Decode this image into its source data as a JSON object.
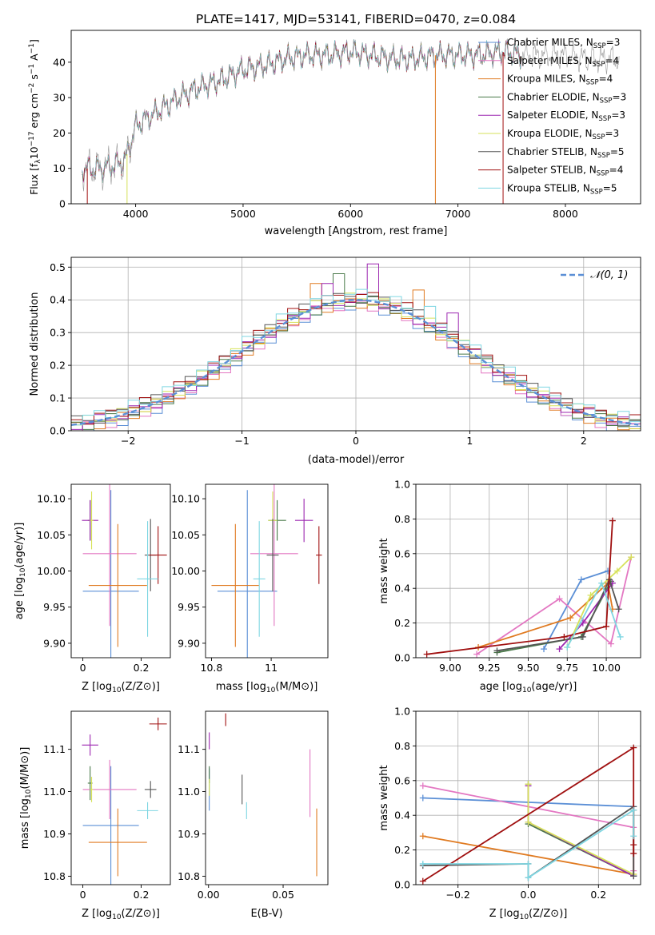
{
  "figure": {
    "title": "PLATE=1417, MJD=53141, FIBERID=0470, z=0.084"
  },
  "colors": {
    "chabrier_miles": "#5b8fd6",
    "salpeter_miles": "#e377c2",
    "kroupa_miles": "#e07b22",
    "chabrier_elodie": "#4a7a4a",
    "salpeter_elodie": "#9c27b0",
    "kroupa_elodie": "#d6e25a",
    "chabrier_stelib": "#555555",
    "salpeter_stelib": "#a01010",
    "kroupa_stelib": "#7fd6e2"
  },
  "chart_data": [
    {
      "id": "spectrum",
      "type": "line",
      "xlabel": "wavelength [Angstrom, rest frame]",
      "ylabel": "Flux [f_λ 10^-17 erg cm^-2 s^-1 A^-1]",
      "xlim": [
        3400,
        8700
      ],
      "ylim": [
        0,
        49
      ],
      "xticks": [
        4000,
        5000,
        6000,
        7000,
        8000
      ],
      "yticks": [
        0,
        10,
        20,
        30,
        40
      ],
      "legend_loc": "upper right",
      "legend": [
        {
          "base": "Chabrier MILES, N",
          "sub": "SSP",
          "tail": "=3",
          "color_key": "chabrier_miles"
        },
        {
          "base": "Salpeter MILES, N",
          "sub": "SSP",
          "tail": "=4",
          "color_key": "salpeter_miles"
        },
        {
          "base": "Kroupa MILES, N",
          "sub": "SSP",
          "tail": "=4",
          "color_key": "kroupa_miles"
        },
        {
          "base": "Chabrier ELODIE, N",
          "sub": "SSP",
          "tail": "=3",
          "color_key": "chabrier_elodie"
        },
        {
          "base": "Salpeter ELODIE, N",
          "sub": "SSP",
          "tail": "=3",
          "color_key": "salpeter_elodie"
        },
        {
          "base": "Kroupa ELODIE, N",
          "sub": "SSP",
          "tail": "=3",
          "color_key": "kroupa_elodie"
        },
        {
          "base": "Chabrier STELIB, N",
          "sub": "SSP",
          "tail": "=5",
          "color_key": "chabrier_stelib"
        },
        {
          "base": "Salpeter STELIB, N",
          "sub": "SSP",
          "tail": "=4",
          "color_key": "salpeter_stelib"
        },
        {
          "base": "Kroupa STELIB, N",
          "sub": "SSP",
          "tail": "=5",
          "color_key": "kroupa_stelib"
        }
      ],
      "continuum": [
        [
          3500,
          10
        ],
        [
          3700,
          10
        ],
        [
          3900,
          12
        ],
        [
          4000,
          22
        ],
        [
          4200,
          26
        ],
        [
          4400,
          30
        ],
        [
          4600,
          33
        ],
        [
          4800,
          35
        ],
        [
          5000,
          38
        ],
        [
          5200,
          39
        ],
        [
          5400,
          41
        ],
        [
          5600,
          42
        ],
        [
          5800,
          42
        ],
        [
          6000,
          43
        ],
        [
          6200,
          42
        ],
        [
          6400,
          41
        ],
        [
          6600,
          41
        ],
        [
          6800,
          42
        ],
        [
          7000,
          42
        ],
        [
          7200,
          42
        ],
        [
          7400,
          43
        ],
        [
          7600,
          42
        ],
        [
          7800,
          42
        ],
        [
          8000,
          42
        ],
        [
          8200,
          41
        ],
        [
          8400,
          41
        ]
      ],
      "data_color": "#999999",
      "data_extends_to": 8500,
      "model_extends_to": 7600,
      "cutoffs": [
        {
          "x": 3550,
          "color_key": "salpeter_stelib"
        },
        {
          "x": 3920,
          "color_key": "kroupa_elodie"
        },
        {
          "x": 6790,
          "color_key": "kroupa_miles"
        },
        {
          "x": 7420,
          "color_key": "salpeter_stelib"
        }
      ]
    },
    {
      "id": "residuals",
      "type": "histogram",
      "xlabel": "(data-model)/error",
      "ylabel": "Normed distribution",
      "xlim": [
        -2.5,
        2.5
      ],
      "ylim": [
        0,
        0.53
      ],
      "xticks": [
        -2,
        -1,
        0,
        1,
        2
      ],
      "yticks": [
        0.0,
        0.1,
        0.2,
        0.3,
        0.4,
        0.5
      ],
      "grid": true,
      "legend_loc": "upper right",
      "gaussian_label": "𝒩(0, 1)",
      "gaussian_color": "#5b8fd6",
      "bin_width": 0.1,
      "hist_sigma": 1.0,
      "hist_peak": 0.4,
      "outlier_bins": [
        {
          "x": -0.35,
          "y": 0.45,
          "color_key": "kroupa_miles"
        },
        {
          "x": -0.25,
          "y": 0.45,
          "color_key": "salpeter_elodie"
        },
        {
          "x": -0.15,
          "y": 0.48,
          "color_key": "chabrier_elodie"
        },
        {
          "x": 0.15,
          "y": 0.51,
          "color_key": "salpeter_elodie"
        },
        {
          "x": 0.55,
          "y": 0.43,
          "color_key": "kroupa_miles"
        },
        {
          "x": 0.65,
          "y": 0.38,
          "color_key": "kroupa_stelib"
        },
        {
          "x": 0.85,
          "y": 0.36,
          "color_key": "salpeter_elodie"
        }
      ]
    },
    {
      "id": "age_vs_Z",
      "type": "errorbar",
      "xlabel": "Z [log10(Z/Z⊙)]",
      "ylabel": "age  [log10(age/yr)]",
      "xlim": [
        -0.04,
        0.3
      ],
      "ylim": [
        9.88,
        10.12
      ],
      "xticks": [
        0.0,
        0.2
      ],
      "yticks": [
        9.9,
        9.95,
        10.0,
        10.05,
        10.1
      ],
      "points": [
        {
          "x": 0.096,
          "y": 9.972,
          "xerr": 0.096,
          "yerr": 0.14,
          "color_key": "chabrier_miles"
        },
        {
          "x": 0.092,
          "y": 10.024,
          "xerr": 0.092,
          "yerr": 0.1,
          "color_key": "salpeter_miles"
        },
        {
          "x": 0.12,
          "y": 9.98,
          "xerr": 0.1,
          "yerr": 0.085,
          "color_key": "kroupa_miles"
        },
        {
          "x": 0.025,
          "y": 10.07,
          "xerr": 0.008,
          "yerr": 0.028,
          "color_key": "chabrier_elodie"
        },
        {
          "x": 0.025,
          "y": 10.07,
          "xerr": 0.028,
          "yerr": 0.028,
          "color_key": "salpeter_elodie"
        },
        {
          "x": 0.03,
          "y": 10.07,
          "xerr": 0.006,
          "yerr": 0.04,
          "color_key": "kroupa_elodie"
        },
        {
          "x": 0.232,
          "y": 10.022,
          "xerr": 0.02,
          "yerr": 0.05,
          "color_key": "chabrier_stelib"
        },
        {
          "x": 0.258,
          "y": 10.022,
          "xerr": 0.03,
          "yerr": 0.04,
          "color_key": "salpeter_stelib"
        },
        {
          "x": 0.222,
          "y": 9.989,
          "xerr": 0.036,
          "yerr": 0.08,
          "color_key": "kroupa_stelib"
        }
      ]
    },
    {
      "id": "age_vs_mass",
      "type": "errorbar",
      "xlabel": "mass [log10(M/M⊙)]",
      "ylabel": "",
      "xlim": [
        10.78,
        11.19
      ],
      "ylim": [
        9.88,
        10.12
      ],
      "xticks": [
        10.8,
        11.0
      ],
      "yticks": [
        9.9,
        9.95,
        10.0,
        10.05,
        10.1
      ],
      "points": [
        {
          "x": 10.92,
          "y": 9.972,
          "xerr": 0.1,
          "yerr": 0.14,
          "color_key": "chabrier_miles"
        },
        {
          "x": 11.01,
          "y": 10.024,
          "xerr": 0.08,
          "yerr": 0.1,
          "color_key": "salpeter_miles"
        },
        {
          "x": 10.88,
          "y": 9.98,
          "xerr": 0.08,
          "yerr": 0.085,
          "color_key": "kroupa_miles"
        },
        {
          "x": 11.02,
          "y": 10.07,
          "xerr": 0.03,
          "yerr": 0.028,
          "color_key": "chabrier_elodie"
        },
        {
          "x": 11.11,
          "y": 10.07,
          "xerr": 0.03,
          "yerr": 0.03,
          "color_key": "salpeter_elodie"
        },
        {
          "x": 11.005,
          "y": 10.07,
          "xerr": 0.015,
          "yerr": 0.04,
          "color_key": "kroupa_elodie"
        },
        {
          "x": 11.005,
          "y": 10.022,
          "xerr": 0.02,
          "yerr": 0.05,
          "color_key": "chabrier_stelib"
        },
        {
          "x": 11.16,
          "y": 10.022,
          "xerr": 0.01,
          "yerr": 0.04,
          "color_key": "salpeter_stelib"
        },
        {
          "x": 10.96,
          "y": 9.989,
          "xerr": 0.02,
          "yerr": 0.08,
          "color_key": "kroupa_stelib"
        }
      ]
    },
    {
      "id": "massweight_vs_age",
      "type": "line",
      "xlabel": "age  [log10(age/yr)]",
      "ylabel": "mass weight",
      "xlim": [
        8.78,
        10.22
      ],
      "ylim": [
        0,
        1
      ],
      "xticks": [
        9.0,
        9.25,
        9.5,
        9.75,
        10.0
      ],
      "xtick_labels": [
        "9.00",
        "9.25",
        "9.50",
        "9.75",
        "10.00"
      ],
      "yticks": [
        0.0,
        0.2,
        0.4,
        0.6,
        0.8,
        1.0
      ],
      "grid": true,
      "series": [
        {
          "color_key": "chabrier_miles",
          "points": [
            [
              9.6,
              0.05
            ],
            [
              9.84,
              0.45
            ],
            [
              10.01,
              0.5
            ]
          ]
        },
        {
          "color_key": "salpeter_miles",
          "points": [
            [
              9.17,
              0.02
            ],
            [
              9.7,
              0.34
            ],
            [
              10.03,
              0.08
            ],
            [
              10.16,
              0.58
            ]
          ]
        },
        {
          "color_key": "kroupa_miles",
          "points": [
            [
              9.18,
              0.06
            ],
            [
              9.77,
              0.23
            ],
            [
              10.01,
              0.43
            ],
            [
              10.04,
              0.28
            ]
          ]
        },
        {
          "color_key": "chabrier_elodie",
          "points": [
            [
              9.3,
              0.03
            ],
            [
              9.84,
              0.12
            ],
            [
              10.03,
              0.44
            ]
          ]
        },
        {
          "color_key": "salpeter_elodie",
          "points": [
            [
              9.7,
              0.05
            ],
            [
              9.85,
              0.2
            ],
            [
              10.04,
              0.43
            ]
          ]
        },
        {
          "color_key": "kroupa_elodie",
          "points": [
            [
              9.75,
              0.06
            ],
            [
              9.9,
              0.36
            ],
            [
              10.07,
              0.5
            ],
            [
              10.16,
              0.58
            ]
          ]
        },
        {
          "color_key": "chabrier_stelib",
          "points": [
            [
              9.3,
              0.04
            ],
            [
              9.85,
              0.12
            ],
            [
              10.02,
              0.45
            ],
            [
              10.08,
              0.28
            ]
          ]
        },
        {
          "color_key": "salpeter_stelib",
          "points": [
            [
              8.85,
              0.02
            ],
            [
              9.73,
              0.12
            ],
            [
              10.0,
              0.18
            ],
            [
              10.04,
              0.79
            ]
          ]
        },
        {
          "color_key": "kroupa_stelib",
          "points": [
            [
              9.75,
              0.06
            ],
            [
              9.97,
              0.43
            ],
            [
              10.09,
              0.12
            ]
          ]
        }
      ]
    },
    {
      "id": "mass_vs_Z",
      "type": "errorbar",
      "xlabel": "Z [log10(Z/Z⊙)]",
      "ylabel": "mass [log10(M/M⊙)]",
      "xlim": [
        -0.04,
        0.3
      ],
      "ylim": [
        10.78,
        11.19
      ],
      "xticks": [
        0.0,
        0.2
      ],
      "yticks": [
        10.8,
        10.9,
        11.0,
        11.1
      ],
      "points": [
        {
          "x": 0.096,
          "y": 10.92,
          "xerr": 0.096,
          "yerr": 0.14,
          "color_key": "chabrier_miles"
        },
        {
          "x": 0.092,
          "y": 11.005,
          "xerr": 0.092,
          "yerr": 0.07,
          "color_key": "salpeter_miles"
        },
        {
          "x": 0.12,
          "y": 10.88,
          "xerr": 0.1,
          "yerr": 0.08,
          "color_key": "kroupa_miles"
        },
        {
          "x": 0.025,
          "y": 11.02,
          "xerr": 0.008,
          "yerr": 0.04,
          "color_key": "chabrier_elodie"
        },
        {
          "x": 0.025,
          "y": 11.11,
          "xerr": 0.028,
          "yerr": 0.025,
          "color_key": "salpeter_elodie"
        },
        {
          "x": 0.03,
          "y": 11.005,
          "xerr": 0.006,
          "yerr": 0.03,
          "color_key": "kroupa_elodie"
        },
        {
          "x": 0.232,
          "y": 11.005,
          "xerr": 0.02,
          "yerr": 0.02,
          "color_key": "chabrier_stelib"
        },
        {
          "x": 0.258,
          "y": 11.16,
          "xerr": 0.03,
          "yerr": 0.015,
          "color_key": "salpeter_stelib"
        },
        {
          "x": 0.222,
          "y": 10.955,
          "xerr": 0.036,
          "yerr": 0.02,
          "color_key": "kroupa_stelib"
        }
      ]
    },
    {
      "id": "mass_vs_EBV",
      "type": "errorbar",
      "xlabel": "E(B-V)",
      "ylabel": "",
      "xlim": [
        -0.002,
        0.08
      ],
      "ylim": [
        10.78,
        11.19
      ],
      "xticks": [
        0.0,
        0.05
      ],
      "xtick_labels": [
        "0.00",
        "0.05"
      ],
      "yticks": [
        10.8,
        10.9,
        11.0,
        11.1
      ],
      "points": [
        {
          "x": 0.0005,
          "y": 11.005,
          "xerr": 0,
          "yerr": 0.05,
          "color_key": "chabrier_miles"
        },
        {
          "x": 0.068,
          "y": 11.02,
          "xerr": 0,
          "yerr": 0.08,
          "color_key": "salpeter_miles"
        },
        {
          "x": 0.0725,
          "y": 10.88,
          "xerr": 0,
          "yerr": 0.08,
          "color_key": "kroupa_miles"
        },
        {
          "x": 0.0005,
          "y": 11.04,
          "xerr": 0,
          "yerr": 0.02,
          "color_key": "chabrier_elodie"
        },
        {
          "x": 0.0005,
          "y": 11.12,
          "xerr": 0,
          "yerr": 0.02,
          "color_key": "salpeter_elodie"
        },
        {
          "x": 0.0005,
          "y": 11.01,
          "xerr": 0,
          "yerr": 0.02,
          "color_key": "kroupa_elodie"
        },
        {
          "x": 0.0225,
          "y": 11.005,
          "xerr": 0,
          "yerr": 0.035,
          "color_key": "chabrier_stelib"
        },
        {
          "x": 0.0115,
          "y": 11.17,
          "xerr": 0,
          "yerr": 0.015,
          "color_key": "salpeter_stelib"
        },
        {
          "x": 0.0255,
          "y": 10.955,
          "xerr": 0,
          "yerr": 0.02,
          "color_key": "kroupa_stelib"
        }
      ]
    },
    {
      "id": "massweight_vs_Z",
      "type": "line",
      "xlabel": "Z [log10(Z/Z⊙)]",
      "ylabel": "mass weight",
      "xlim": [
        -0.32,
        0.32
      ],
      "ylim": [
        0,
        1
      ],
      "xticks": [
        -0.2,
        0.0,
        0.2
      ],
      "xtick_labels": [
        "−0.2",
        "0.0",
        "0.2"
      ],
      "yticks": [
        0.0,
        0.2,
        0.4,
        0.6,
        0.8,
        1.0
      ],
      "grid": true,
      "series": [
        {
          "color_key": "chabrier_miles",
          "points": [
            [
              -0.3,
              0.5
            ],
            [
              0.3,
              0.45
            ],
            [
              0.3,
              0.05
            ]
          ]
        },
        {
          "color_key": "salpeter_miles",
          "points": [
            [
              -0.3,
              0.57
            ],
            [
              0.3,
              0.33
            ],
            [
              0.3,
              0.08
            ]
          ]
        },
        {
          "color_key": "kroupa_miles",
          "points": [
            [
              -0.3,
              0.28
            ],
            [
              0.3,
              0.06
            ],
            [
              0.3,
              0.43
            ]
          ]
        },
        {
          "color_key": "chabrier_elodie",
          "points": [
            [
              0.0,
              0.58
            ],
            [
              0.0,
              0.35
            ],
            [
              0.3,
              0.05
            ]
          ]
        },
        {
          "color_key": "salpeter_elodie",
          "points": [
            [
              0.0,
              0.57
            ],
            [
              0.0,
              0.36
            ],
            [
              0.3,
              0.05
            ]
          ]
        },
        {
          "color_key": "kroupa_elodie",
          "points": [
            [
              0.0,
              0.58
            ],
            [
              0.0,
              0.36
            ],
            [
              0.3,
              0.06
            ]
          ]
        },
        {
          "color_key": "chabrier_stelib",
          "points": [
            [
              -0.3,
              0.11
            ],
            [
              0.0,
              0.12
            ],
            [
              0.0,
              0.04
            ],
            [
              0.3,
              0.45
            ],
            [
              0.3,
              0.05
            ]
          ]
        },
        {
          "color_key": "salpeter_stelib",
          "points": [
            [
              -0.3,
              0.02
            ],
            [
              0.3,
              0.79
            ],
            [
              0.3,
              0.23
            ],
            [
              0.3,
              0.18
            ]
          ]
        },
        {
          "color_key": "kroupa_stelib",
          "points": [
            [
              -0.3,
              0.12
            ],
            [
              0.0,
              0.12
            ],
            [
              0.0,
              0.04
            ],
            [
              0.3,
              0.43
            ],
            [
              0.3,
              0.28
            ]
          ]
        }
      ]
    }
  ]
}
